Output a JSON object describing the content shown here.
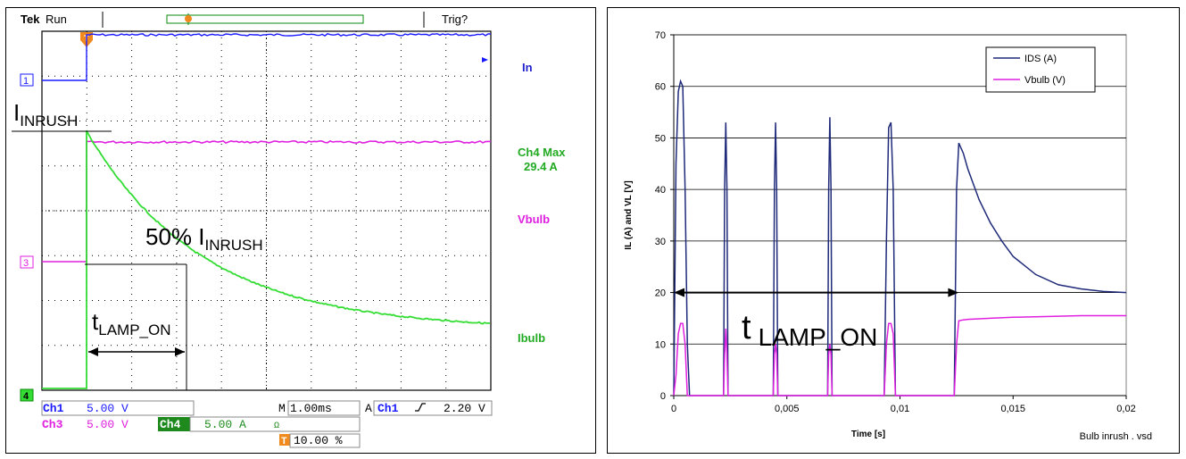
{
  "scope": {
    "brand": "Tek",
    "status": "Run",
    "trigger_status": "Trig?",
    "marker_label": "T",
    "channel_marker_1": "1",
    "channel_marker_3": "3",
    "channel_marker_4": "4",
    "labels": {
      "in": "In",
      "ch4_max_line1": "Ch4 Max",
      "ch4_max_line2": "29.4 A",
      "vbulb": "Vbulb",
      "ibulb": "Ibulb"
    },
    "annotations": {
      "i_inrush_main": "I",
      "i_inrush_sub": "INRUSH",
      "fifty_main": "50% I",
      "fifty_sub": "INRUSH",
      "t_main": "t",
      "t_sub": "LAMP_ON"
    },
    "readouts": {
      "ch1_label": "Ch1",
      "ch1_value": "5.00 V",
      "ch3_label": "Ch3",
      "ch3_value": "5.00 V",
      "ch4_label": "Ch4",
      "ch4_value": "5.00 A",
      "timebase_prefix": "M",
      "timebase_value": "1.00ms",
      "trigger_mode": "A",
      "trigger_channel": "Ch1",
      "trigger_level": "2.20 V",
      "trigger_pos_icon_label": "T",
      "trigger_pos_value": "10.00 %"
    },
    "colors": {
      "ch1": "#1a1aff",
      "ch3": "#e020e0",
      "ch4": "#33dd33",
      "label_blue": "#2222cc",
      "label_green": "#22aa22"
    }
  },
  "chart_data": {
    "type": "line",
    "title": "",
    "xlabel": "Time [s]",
    "ylabel": "IL (A) and VL [V]",
    "xlim": [
      0,
      0.02
    ],
    "ylim": [
      0,
      70
    ],
    "x_ticks": [
      "0",
      "0,005",
      "0,01",
      "0,015",
      "0,02"
    ],
    "x_tick_values": [
      0,
      0.005,
      0.01,
      0.015,
      0.02
    ],
    "y_ticks": [
      "0",
      "10",
      "20",
      "30",
      "40",
      "50",
      "60",
      "70"
    ],
    "y_tick_values": [
      0,
      10,
      20,
      30,
      40,
      50,
      60,
      70
    ],
    "grid": "horizontal",
    "legend": "top-right",
    "footnote": "Bulb inrush . vsd",
    "annotation": {
      "main": "t",
      "sub": "LAMP_ON",
      "arrow_from": 0,
      "arrow_to": 0.0126,
      "arrow_y": 20
    },
    "series": [
      {
        "name": "IDS (A)",
        "color": "#1f2a7a",
        "x": [
          0,
          0.0001,
          0.0002,
          0.0003,
          0.0004,
          0.0005,
          0.0006,
          0.0007,
          0.0022,
          0.00225,
          0.0023,
          0.00235,
          0.0024,
          0.0044,
          0.00445,
          0.0045,
          0.00455,
          0.0046,
          0.0068,
          0.00685,
          0.0069,
          0.00695,
          0.007,
          0.0093,
          0.0094,
          0.0095,
          0.0096,
          0.0097,
          0.0098,
          0.0124,
          0.0125,
          0.0126,
          0.0128,
          0.013,
          0.0135,
          0.014,
          0.0145,
          0.015,
          0.016,
          0.017,
          0.018,
          0.019,
          0.02
        ],
        "y": [
          0,
          45,
          59,
          61,
          60,
          40,
          10,
          0,
          0,
          40,
          53,
          40,
          0,
          0,
          40,
          53,
          40,
          0,
          0,
          40,
          54,
          40,
          0,
          0,
          30,
          52,
          53,
          40,
          0,
          0,
          40,
          49,
          47,
          44,
          38,
          33.5,
          30,
          27,
          23.5,
          21.5,
          20.7,
          20.2,
          20
        ]
      },
      {
        "name": "Vbulb (V)",
        "color": "#e020e0",
        "x": [
          0,
          0.0001,
          0.0002,
          0.0003,
          0.0004,
          0.0005,
          0.0006,
          0.0007,
          0.0022,
          0.00225,
          0.0023,
          0.00235,
          0.0024,
          0.0044,
          0.00445,
          0.0045,
          0.00455,
          0.0046,
          0.0068,
          0.00685,
          0.0069,
          0.00695,
          0.007,
          0.0093,
          0.0094,
          0.0095,
          0.0096,
          0.0097,
          0.0098,
          0.0124,
          0.0125,
          0.0126,
          0.0128,
          0.013,
          0.014,
          0.015,
          0.016,
          0.017,
          0.018,
          0.019,
          0.02
        ],
        "y": [
          0,
          4,
          12,
          14,
          14,
          10,
          0,
          0,
          0,
          8,
          13,
          8,
          0,
          0,
          8,
          10,
          8,
          0,
          0,
          8,
          10,
          8,
          0,
          0,
          10,
          14,
          14,
          12,
          0,
          0,
          10,
          14.5,
          14.7,
          14.8,
          15,
          15.2,
          15.3,
          15.4,
          15.5,
          15.5,
          15.5
        ]
      }
    ]
  }
}
